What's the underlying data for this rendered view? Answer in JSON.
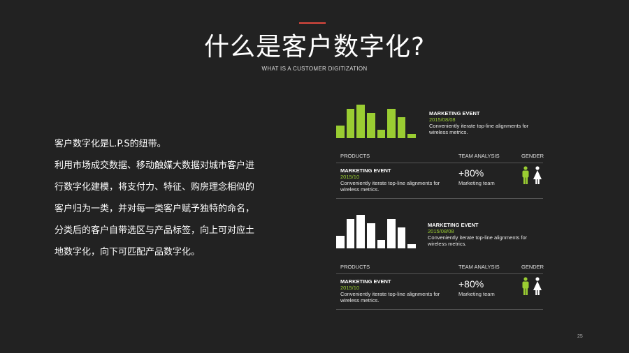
{
  "header": {
    "title": "什么是客户数字化?",
    "subtitle": "WHAT IS A CUSTOMER DIGITIZATION"
  },
  "intro": {
    "lines": [
      "客户数字化是L.P.S的纽带。",
      "利用市场成交数据、移动触媒大数据对城市客户进",
      "行数字化建模，将支付力、特征、购房理念相似的",
      "客户归为一类，并对每一类客户赋予独特的命名，",
      "分类后的客户自带选区与产品标签，向上可对应土",
      "地数字化，向下可匹配产品数字化。"
    ]
  },
  "colors": {
    "background": "#222222",
    "accent_red": "#e0483e",
    "green": "#9acd32",
    "white": "#ffffff",
    "divider": "#555555"
  },
  "panels": [
    {
      "chart_color": "#9acd32",
      "chart_values": [
        3,
        7,
        8,
        6,
        2,
        7,
        5,
        1
      ],
      "event": {
        "title": "MARKETING EVENT",
        "date": "2015/08/08",
        "desc": "Conveniently iterate top-line alignments for wireless metrics."
      },
      "table": {
        "headers": [
          "PRODUCTS",
          "TEAM ANALYSIS",
          "GENDER"
        ],
        "row": {
          "event_title": "MARKETING EVENT",
          "event_date": "2015/10",
          "event_desc": "Conveniently iterate top-line alignments for wireless metrics.",
          "percent": "+80%",
          "team": "Marketing team"
        }
      }
    },
    {
      "chart_color": "#ffffff",
      "chart_values": [
        3,
        7,
        8,
        6,
        2,
        7,
        5,
        1
      ],
      "event": {
        "title": "MARKETING EVENT",
        "date": "2015/08/08",
        "desc": "Conveniently iterate top-line alignments for wireless metrics."
      },
      "table": {
        "headers": [
          "PRODUCTS",
          "TEAM ANALYSIS",
          "GENDER"
        ],
        "row": {
          "event_title": "MARKETING EVENT",
          "event_date": "2015/10",
          "event_desc": "Conveniently iterate top-line alignments for wireless metrics.",
          "percent": "+80%",
          "team": "Marketing team"
        }
      }
    }
  ],
  "gender_icons": [
    "male-icon",
    "female-icon"
  ],
  "page_number": "25"
}
